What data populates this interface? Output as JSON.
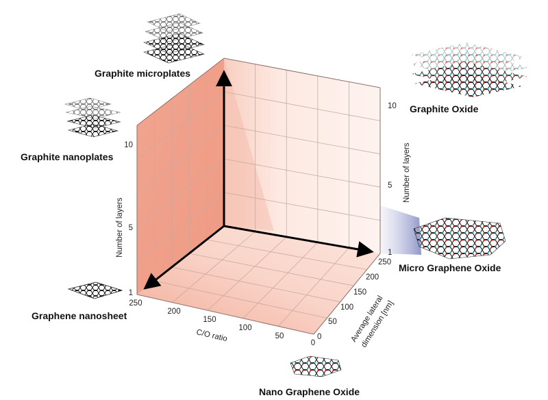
{
  "materials": {
    "graphite_microplates": "Graphite microplates",
    "graphite_nanoplates": "Graphite nanoplates",
    "graphene_nanosheet": "Graphene nanosheet",
    "graphite_oxide": "Graphite Oxide",
    "micro_graphene_oxide": "Micro Graphene Oxide",
    "nano_graphene_oxide": "Nano Graphene Oxide"
  },
  "axes": {
    "left_layers": {
      "title": "Number of layers",
      "ticks": [
        "10",
        "5",
        "1"
      ]
    },
    "right_layers": {
      "title": "Number of layers",
      "ticks": [
        "10",
        "5",
        "1"
      ]
    },
    "co_ratio": {
      "title": "C/O ratio",
      "ticks": [
        "250",
        "200",
        "150",
        "100",
        "50",
        "0"
      ]
    },
    "lateral": {
      "title_line1": "Average lateral",
      "title_line2": "dimension [nm]",
      "ticks": [
        "250",
        "200",
        "150",
        "100",
        "50",
        "0"
      ]
    }
  },
  "colors": {
    "wall_left": "#ef9f88",
    "wall_back": "#fbe6df",
    "floor": "#f8cfc2",
    "grid": "#c9a9a2",
    "arrow": "#000000",
    "glow": "#8d93c4"
  },
  "icons": {
    "molecule": "hexagonal-lattice-icon"
  }
}
